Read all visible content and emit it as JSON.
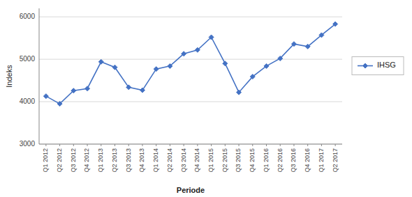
{
  "chart_data": {
    "type": "line",
    "categories": [
      "Q1 2012",
      "Q2 2012",
      "Q3 2012",
      "Q4 2012",
      "Q1 2013",
      "Q2 2013",
      "Q3 2013",
      "Q4 2013",
      "Q1 2014",
      "Q2 2014",
      "Q3 2014",
      "Q4 2014",
      "Q1 2015",
      "Q2 2015",
      "Q3 2015",
      "Q4 2015",
      "Q1 2016",
      "Q2 2016",
      "Q3 2016",
      "Q4 2016",
      "Q1 2017",
      "Q2 2017"
    ],
    "series": [
      {
        "name": "IHSG",
        "color": "#4472C4",
        "marker": "diamond",
        "line_style": "solid",
        "values": [
          4130,
          3950,
          4260,
          4310,
          4940,
          4810,
          4340,
          4270,
          4770,
          4840,
          5130,
          5220,
          5520,
          4900,
          4220,
          4590,
          4840,
          5020,
          5360,
          5300,
          5570,
          5830
        ]
      }
    ],
    "xlabel": "Periode",
    "ylabel": "Indeks",
    "ylim": [
      3000,
      6200
    ],
    "yticks": [
      3000,
      4000,
      5000,
      6000
    ],
    "grid": true,
    "legend": "right"
  }
}
